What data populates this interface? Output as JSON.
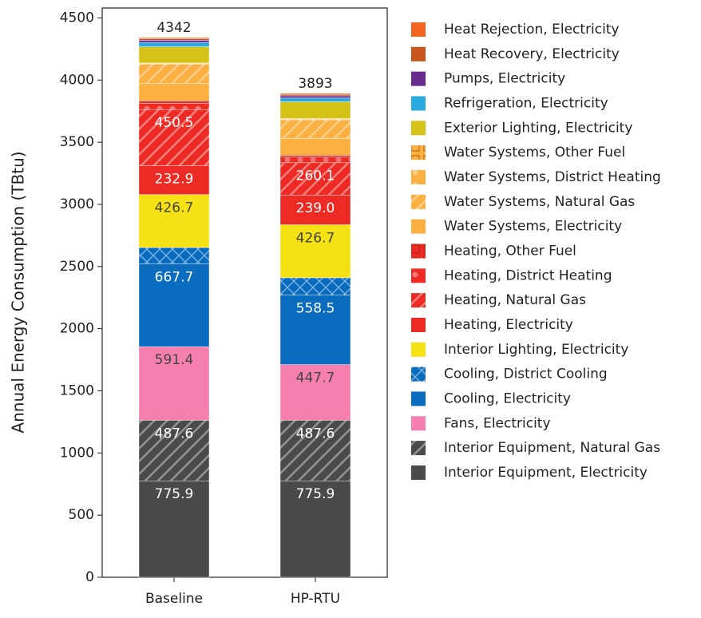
{
  "chart_data": {
    "type": "stacked_bar",
    "y_label": "Annual Energy Consumption (TBtu)",
    "categories": [
      "Baseline",
      "HP-RTU"
    ],
    "totals": [
      4342,
      3893
    ],
    "ylim": [
      0,
      4580
    ],
    "yticks": [
      0,
      500,
      1000,
      1500,
      2000,
      2500,
      3000,
      3500,
      4000,
      4500
    ],
    "series": [
      {
        "name": "Interior Equipment, Electricity",
        "color": "#4a4a48",
        "values": [
          775.9,
          775.9
        ]
      },
      {
        "name": "Interior Equipment, Natural Gas",
        "color": "#4a4a48",
        "pattern": "hatch",
        "values": [
          487.6,
          487.6
        ]
      },
      {
        "name": "Fans, Electricity",
        "color": "#f77fb0",
        "values": [
          591.4,
          447.7
        ]
      },
      {
        "name": "Cooling, Electricity",
        "color": "#0a6cbf",
        "values": [
          667.7,
          558.5
        ]
      },
      {
        "name": "Cooling, District Cooling",
        "color": "#0a6cbf",
        "pattern": "cross",
        "values": [
          130,
          140
        ]
      },
      {
        "name": "Interior Lighting, Electricity",
        "color": "#f5e114",
        "values": [
          426.7,
          426.7
        ]
      },
      {
        "name": "Heating, Electricity",
        "color": "#ee2a24",
        "values": [
          232.9,
          239.0
        ],
        "value_labels": [
          "232.9",
          "239.0"
        ]
      },
      {
        "name": "Heating, Natural Gas",
        "color": "#ee2a24",
        "pattern": "hatch",
        "values": [
          450.5,
          260.1
        ]
      },
      {
        "name": "Heating, District Heating",
        "color": "#ee2a24",
        "pattern": "dots",
        "values": [
          50,
          45
        ]
      },
      {
        "name": "Heating, Other Fuel",
        "color": "#ee2a24",
        "pattern": "grid",
        "values": [
          20,
          15
        ]
      },
      {
        "name": "Water Systems, Electricity",
        "color": "#fbb040",
        "values": [
          140,
          135
        ]
      },
      {
        "name": "Water Systems, Natural Gas",
        "color": "#fbb040",
        "pattern": "hatch",
        "values": [
          155,
          150
        ]
      },
      {
        "name": "Water Systems, District Heating",
        "color": "#fbb040",
        "pattern": "dots",
        "values": [
          5,
          5
        ]
      },
      {
        "name": "Water Systems, Other Fuel",
        "color": "#fbb040",
        "pattern": "grid",
        "values": [
          5,
          5
        ]
      },
      {
        "name": "Exterior Lighting, Electricity",
        "color": "#d4c316",
        "values": [
          130,
          135
        ]
      },
      {
        "name": "Refrigeration, Electricity",
        "color": "#29abe2",
        "values": [
          35,
          30
        ]
      },
      {
        "name": "Pumps, Electricity",
        "color": "#6a2c91",
        "values": [
          18,
          18
        ]
      },
      {
        "name": "Heat Recovery, Electricity",
        "color": "#c8561c",
        "values": [
          12,
          12
        ]
      },
      {
        "name": "Heat Rejection, Electricity",
        "color": "#f26522",
        "values": [
          9,
          7.5
        ]
      }
    ],
    "labeled_series": [
      0,
      1,
      2,
      3,
      5,
      6,
      7
    ]
  }
}
